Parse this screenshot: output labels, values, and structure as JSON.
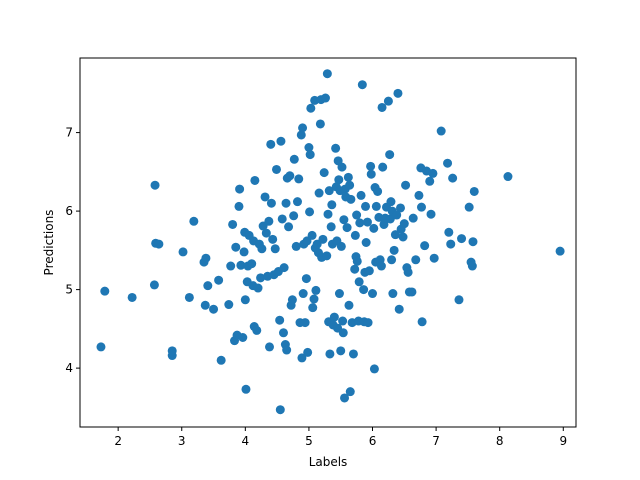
{
  "chart_data": {
    "type": "scatter",
    "title": "",
    "xlabel": "Labels",
    "ylabel": "Predictions",
    "xlim": [
      1.4,
      9.2
    ],
    "ylim": [
      3.25,
      7.95
    ],
    "xticks": [
      2,
      3,
      4,
      5,
      6,
      7,
      8,
      9
    ],
    "yticks": [
      4,
      5,
      6,
      7
    ],
    "grid": false,
    "marker_color": "#1f77b4",
    "series": [
      {
        "points": [
          [
            1.73,
            4.27
          ],
          [
            1.79,
            4.98
          ],
          [
            2.22,
            4.9
          ],
          [
            2.57,
            5.06
          ],
          [
            2.58,
            6.33
          ],
          [
            2.59,
            5.59
          ],
          [
            2.64,
            5.58
          ],
          [
            2.85,
            4.16
          ],
          [
            2.85,
            4.22
          ],
          [
            3.02,
            5.48
          ],
          [
            3.12,
            4.9
          ],
          [
            3.19,
            5.87
          ],
          [
            3.35,
            5.35
          ],
          [
            3.37,
            4.8
          ],
          [
            3.38,
            5.4
          ],
          [
            3.41,
            5.05
          ],
          [
            3.5,
            4.75
          ],
          [
            3.58,
            5.12
          ],
          [
            3.62,
            4.1
          ],
          [
            3.74,
            4.81
          ],
          [
            3.77,
            5.3
          ],
          [
            3.8,
            5.83
          ],
          [
            3.83,
            4.35
          ],
          [
            3.85,
            5.54
          ],
          [
            3.87,
            4.42
          ],
          [
            3.9,
            6.06
          ],
          [
            3.91,
            6.28
          ],
          [
            3.93,
            5.31
          ],
          [
            3.96,
            4.39
          ],
          [
            3.98,
            5.48
          ],
          [
            3.99,
            5.73
          ],
          [
            4.0,
            4.87
          ],
          [
            4.01,
            3.73
          ],
          [
            4.03,
            5.1
          ],
          [
            4.04,
            5.3
          ],
          [
            4.06,
            5.69
          ],
          [
            4.1,
            5.33
          ],
          [
            4.12,
            5.05
          ],
          [
            4.13,
            5.62
          ],
          [
            4.14,
            4.53
          ],
          [
            4.15,
            6.39
          ],
          [
            4.18,
            4.48
          ],
          [
            4.2,
            5.02
          ],
          [
            4.22,
            5.58
          ],
          [
            4.24,
            5.15
          ],
          [
            4.26,
            5.52
          ],
          [
            4.28,
            5.81
          ],
          [
            4.31,
            6.18
          ],
          [
            4.33,
            5.72
          ],
          [
            4.35,
            5.17
          ],
          [
            4.37,
            5.87
          ],
          [
            4.38,
            4.27
          ],
          [
            4.4,
            6.85
          ],
          [
            4.41,
            6.1
          ],
          [
            4.43,
            5.64
          ],
          [
            4.45,
            5.19
          ],
          [
            4.47,
            5.52
          ],
          [
            4.49,
            6.53
          ],
          [
            4.52,
            5.23
          ],
          [
            4.54,
            4.61
          ],
          [
            4.55,
            3.47
          ],
          [
            4.56,
            6.89
          ],
          [
            4.58,
            5.9
          ],
          [
            4.6,
            4.45
          ],
          [
            4.61,
            5.28
          ],
          [
            4.63,
            4.3
          ],
          [
            4.64,
            6.1
          ],
          [
            4.65,
            4.23
          ],
          [
            4.66,
            6.42
          ],
          [
            4.68,
            5.8
          ],
          [
            4.7,
            6.45
          ],
          [
            4.72,
            4.8
          ],
          [
            4.74,
            4.87
          ],
          [
            4.76,
            5.94
          ],
          [
            4.77,
            6.66
          ],
          [
            4.8,
            5.55
          ],
          [
            4.82,
            6.12
          ],
          [
            4.84,
            6.41
          ],
          [
            4.86,
            4.58
          ],
          [
            4.88,
            6.97
          ],
          [
            4.89,
            4.13
          ],
          [
            4.9,
            7.06
          ],
          [
            4.91,
            4.95
          ],
          [
            4.92,
            5.58
          ],
          [
            4.94,
            4.58
          ],
          [
            4.96,
            5.14
          ],
          [
            4.97,
            5.62
          ],
          [
            4.98,
            4.2
          ],
          [
            5.0,
            6.81
          ],
          [
            5.01,
            5.99
          ],
          [
            5.02,
            6.72
          ],
          [
            5.03,
            7.31
          ],
          [
            5.05,
            5.69
          ],
          [
            5.06,
            4.77
          ],
          [
            5.08,
            4.88
          ],
          [
            5.09,
            7.41
          ],
          [
            5.1,
            5.53
          ],
          [
            5.11,
            4.99
          ],
          [
            5.13,
            5.58
          ],
          [
            5.15,
            5.47
          ],
          [
            5.16,
            6.23
          ],
          [
            5.18,
            7.11
          ],
          [
            5.19,
            7.42
          ],
          [
            5.2,
            5.41
          ],
          [
            5.22,
            5.64
          ],
          [
            5.24,
            6.49
          ],
          [
            5.26,
            7.44
          ],
          [
            5.28,
            5.43
          ],
          [
            5.29,
            7.75
          ],
          [
            5.3,
            5.96
          ],
          [
            5.31,
            4.59
          ],
          [
            5.32,
            6.26
          ],
          [
            5.33,
            4.18
          ],
          [
            5.35,
            5.8
          ],
          [
            5.36,
            6.08
          ],
          [
            5.37,
            5.58
          ],
          [
            5.38,
            4.55
          ],
          [
            5.4,
            4.65
          ],
          [
            5.42,
            6.8
          ],
          [
            5.43,
            6.31
          ],
          [
            5.44,
            5.62
          ],
          [
            5.45,
            4.51
          ],
          [
            5.46,
            6.64
          ],
          [
            5.47,
            6.4
          ],
          [
            5.48,
            4.95
          ],
          [
            5.49,
            6.26
          ],
          [
            5.5,
            4.22
          ],
          [
            5.51,
            5.55
          ],
          [
            5.52,
            6.56
          ],
          [
            5.53,
            4.6
          ],
          [
            5.54,
            4.45
          ],
          [
            5.55,
            5.89
          ],
          [
            5.56,
            3.62
          ],
          [
            5.57,
            6.28
          ],
          [
            5.58,
            6.18
          ],
          [
            5.6,
            5.79
          ],
          [
            5.62,
            6.43
          ],
          [
            5.63,
            4.8
          ],
          [
            5.64,
            6.33
          ],
          [
            5.65,
            3.7
          ],
          [
            5.66,
            6.15
          ],
          [
            5.68,
            4.58
          ],
          [
            5.7,
            4.18
          ],
          [
            5.72,
            5.26
          ],
          [
            5.73,
            5.69
          ],
          [
            5.74,
            5.42
          ],
          [
            5.75,
            5.95
          ],
          [
            5.76,
            5.36
          ],
          [
            5.78,
            4.6
          ],
          [
            5.79,
            5.1
          ],
          [
            5.8,
            5.85
          ],
          [
            5.82,
            6.2
          ],
          [
            5.84,
            7.61
          ],
          [
            5.86,
            5.0
          ],
          [
            5.87,
            4.59
          ],
          [
            5.88,
            5.22
          ],
          [
            5.89,
            6.06
          ],
          [
            5.9,
            5.6
          ],
          [
            5.92,
            5.86
          ],
          [
            5.93,
            4.58
          ],
          [
            5.95,
            5.24
          ],
          [
            5.97,
            6.57
          ],
          [
            5.98,
            6.47
          ],
          [
            6.0,
            4.95
          ],
          [
            6.02,
            5.78
          ],
          [
            6.03,
            3.99
          ],
          [
            6.04,
            6.3
          ],
          [
            6.05,
            5.35
          ],
          [
            6.06,
            6.06
          ],
          [
            6.08,
            6.25
          ],
          [
            6.1,
            5.92
          ],
          [
            6.12,
            5.38
          ],
          [
            6.14,
            5.3
          ],
          [
            6.15,
            7.32
          ],
          [
            6.16,
            6.56
          ],
          [
            6.18,
            5.83
          ],
          [
            6.2,
            5.91
          ],
          [
            6.22,
            6.05
          ],
          [
            6.25,
            7.4
          ],
          [
            6.27,
            6.72
          ],
          [
            6.28,
            5.9
          ],
          [
            6.29,
            6.12
          ],
          [
            6.3,
            5.38
          ],
          [
            6.31,
            6.0
          ],
          [
            6.32,
            4.95
          ],
          [
            6.34,
            5.5
          ],
          [
            6.36,
            5.7
          ],
          [
            6.38,
            5.95
          ],
          [
            6.4,
            7.5
          ],
          [
            6.42,
            4.75
          ],
          [
            6.44,
            6.04
          ],
          [
            6.45,
            5.77
          ],
          [
            6.48,
            5.67
          ],
          [
            6.5,
            5.84
          ],
          [
            6.52,
            6.33
          ],
          [
            6.54,
            5.28
          ],
          [
            6.56,
            5.22
          ],
          [
            6.58,
            4.97
          ],
          [
            6.62,
            4.97
          ],
          [
            6.64,
            5.91
          ],
          [
            6.68,
            5.38
          ],
          [
            6.73,
            6.2
          ],
          [
            6.76,
            6.55
          ],
          [
            6.77,
            6.05
          ],
          [
            6.78,
            4.59
          ],
          [
            6.82,
            5.56
          ],
          [
            6.85,
            6.51
          ],
          [
            6.9,
            6.38
          ],
          [
            6.92,
            5.96
          ],
          [
            6.95,
            6.48
          ],
          [
            6.97,
            5.4
          ],
          [
            7.08,
            7.02
          ],
          [
            7.18,
            6.61
          ],
          [
            7.2,
            5.73
          ],
          [
            7.23,
            5.58
          ],
          [
            7.26,
            6.42
          ],
          [
            7.36,
            4.87
          ],
          [
            7.4,
            5.65
          ],
          [
            7.52,
            6.05
          ],
          [
            7.55,
            5.35
          ],
          [
            7.57,
            5.3
          ],
          [
            7.58,
            5.61
          ],
          [
            7.6,
            6.25
          ],
          [
            8.13,
            6.44
          ],
          [
            8.95,
            5.49
          ]
        ]
      }
    ]
  }
}
